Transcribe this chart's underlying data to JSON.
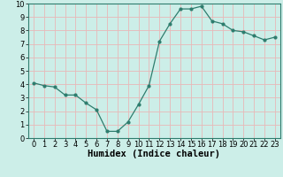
{
  "x": [
    0,
    1,
    2,
    3,
    4,
    5,
    6,
    7,
    8,
    9,
    10,
    11,
    12,
    13,
    14,
    15,
    16,
    17,
    18,
    19,
    20,
    21,
    22,
    23
  ],
  "y": [
    4.1,
    3.9,
    3.8,
    3.2,
    3.2,
    2.6,
    2.1,
    0.5,
    0.5,
    1.2,
    2.5,
    3.9,
    7.2,
    8.5,
    9.6,
    9.6,
    9.8,
    8.7,
    8.5,
    8.0,
    7.9,
    7.6,
    7.3,
    7.5
  ],
  "line_color": "#2e7d6e",
  "marker": "o",
  "marker_size": 2.0,
  "bg_color": "#cceee8",
  "grid_color": "#e8b8b8",
  "xlabel": "Humidex (Indice chaleur)",
  "xlim": [
    -0.5,
    23.5
  ],
  "ylim": [
    0,
    10
  ],
  "xticks": [
    0,
    1,
    2,
    3,
    4,
    5,
    6,
    7,
    8,
    9,
    10,
    11,
    12,
    13,
    14,
    15,
    16,
    17,
    18,
    19,
    20,
    21,
    22,
    23
  ],
  "yticks": [
    0,
    1,
    2,
    3,
    4,
    5,
    6,
    7,
    8,
    9,
    10
  ],
  "tick_label_fontsize": 6.0,
  "xlabel_fontsize": 7.5
}
